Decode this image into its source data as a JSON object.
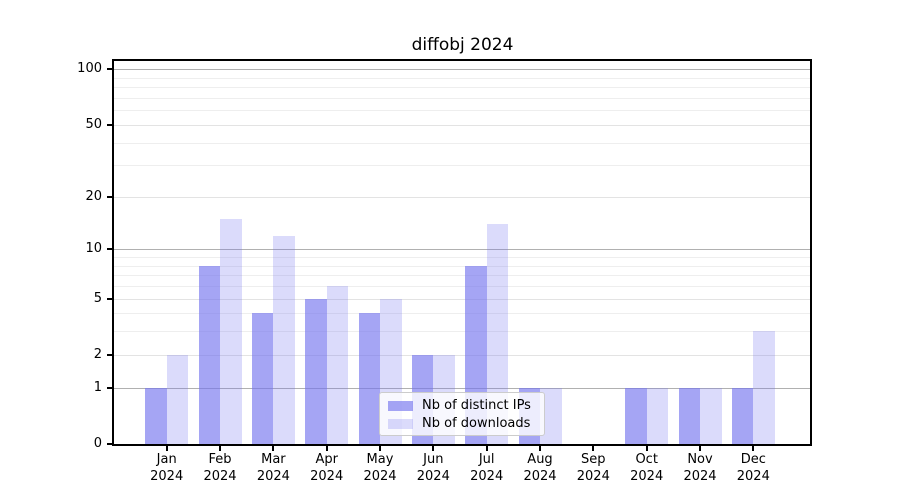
{
  "chart_data": {
    "type": "bar",
    "title": "diffobj 2024",
    "categories": [
      "Jan",
      "Feb",
      "Mar",
      "Apr",
      "May",
      "Jun",
      "Jul",
      "Aug",
      "Sep",
      "Oct",
      "Nov",
      "Dec"
    ],
    "x_year_label": "2024",
    "series": [
      {
        "name": "Nb of distinct IPs",
        "values": [
          1,
          8,
          4,
          5,
          4,
          2,
          8,
          1,
          0,
          1,
          1,
          1
        ],
        "color_rgba": "rgba(116,116,238,0.65)",
        "approx_hex": "#a8a8f2"
      },
      {
        "name": "Nb of downloads",
        "values": [
          2,
          15,
          12,
          6,
          5,
          2,
          14,
          1,
          0,
          1,
          1,
          3
        ],
        "color_rgba": "rgba(116,116,238,0.26)",
        "approx_hex": "#dbdbf9"
      }
    ],
    "y_axis": {
      "scale": "log1p",
      "tick_labels": [
        100,
        50,
        20,
        10,
        5,
        2,
        1,
        0
      ],
      "major_gridlines": [
        1,
        10,
        100
      ],
      "labeled_minor_gridlines": [
        2,
        5,
        20,
        50
      ],
      "minor_gridlines": [
        3,
        4,
        6,
        7,
        8,
        9,
        30,
        40,
        60,
        70,
        80,
        90
      ],
      "ylim": [
        0,
        115
      ]
    },
    "legend": {
      "position": "lower-center"
    },
    "grid": true
  },
  "style": {
    "background": "#ffffff",
    "spine_color": "#000000",
    "text_color": "#000000",
    "major_grid_color": "#b0b0b0",
    "labeled_minor_grid_color": "#e3e3e3",
    "minor_grid_color": "#eeeeee"
  }
}
